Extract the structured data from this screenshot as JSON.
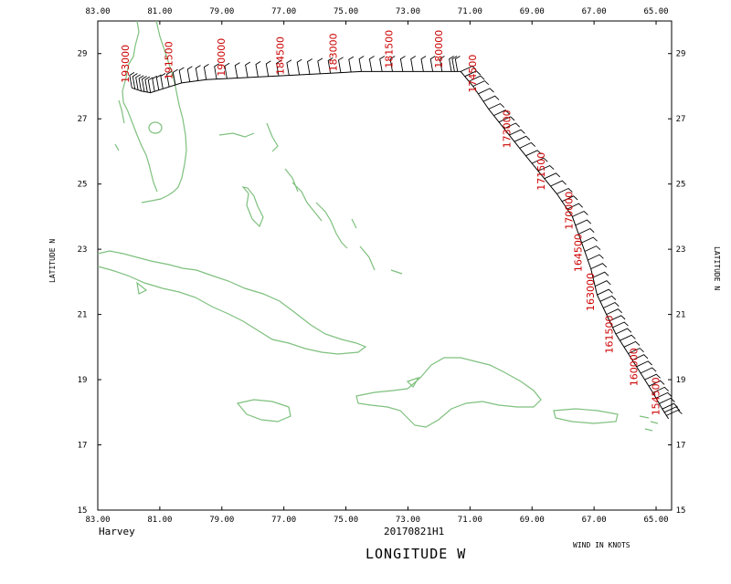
{
  "storm_name": "Harvey",
  "flight_id": "20170821H1",
  "x_axis_title": "LONGITUDE  W",
  "y_axis_title_left": "LATITUDE  N",
  "y_axis_title_right": "LATITUDE  N",
  "wind_units_label": "WIND IN KNOTS",
  "colors": {
    "coastline": "#7ec07e",
    "track": "#000000",
    "time_labels": "#cc0000",
    "frame": "#000000"
  },
  "map_bounds": {
    "lon_min": -83,
    "lon_max": -64.5,
    "lat_min": 15,
    "lat_max": 30
  },
  "lon_ticks": [
    "83.00",
    "81.00",
    "79.00",
    "77.00",
    "75.00",
    "73.00",
    "71.00",
    "69.00",
    "67.00",
    "65.00"
  ],
  "lon_tick_values": [
    -83,
    -81,
    -79,
    -77,
    -75,
    -73,
    -71,
    -69,
    -67,
    -65
  ],
  "lat_ticks": [
    "15",
    "17",
    "19",
    "21",
    "23",
    "25",
    "27",
    "29"
  ],
  "lat_tick_values": [
    15,
    17,
    19,
    21,
    23,
    25,
    27,
    29
  ],
  "flight_track": [
    [
      -81.9,
      27.95
    ],
    [
      -81.6,
      27.85
    ],
    [
      -81.3,
      27.8
    ],
    [
      -80.9,
      27.92
    ],
    [
      -80.3,
      28.1
    ],
    [
      -79.5,
      28.2
    ],
    [
      -78.5,
      28.25
    ],
    [
      -77.5,
      28.3
    ],
    [
      -76.5,
      28.35
    ],
    [
      -75.5,
      28.4
    ],
    [
      -74.5,
      28.45
    ],
    [
      -73.5,
      28.45
    ],
    [
      -72.5,
      28.45
    ],
    [
      -71.6,
      28.45
    ],
    [
      -71.3,
      28.45
    ],
    [
      -70.9,
      28.0
    ],
    [
      -70.4,
      27.3
    ],
    [
      -69.9,
      26.7
    ],
    [
      -69.4,
      26.1
    ],
    [
      -68.8,
      25.4
    ],
    [
      -68.2,
      24.7
    ],
    [
      -67.7,
      24.0
    ],
    [
      -67.4,
      23.2
    ],
    [
      -67.1,
      22.4
    ],
    [
      -66.9,
      21.6
    ],
    [
      -66.6,
      21.0
    ],
    [
      -66.3,
      20.4
    ],
    [
      -65.9,
      19.8
    ],
    [
      -65.5,
      19.2
    ],
    [
      -65.1,
      18.6
    ],
    [
      -64.8,
      18.1
    ],
    [
      -64.6,
      17.8
    ]
  ],
  "time_labels": [
    {
      "text": "193000",
      "lon": -82.0,
      "lat": 28.1
    },
    {
      "text": "191500",
      "lon": -80.6,
      "lat": 28.2
    },
    {
      "text": "190000",
      "lon": -78.9,
      "lat": 28.3
    },
    {
      "text": "184500",
      "lon": -77.0,
      "lat": 28.35
    },
    {
      "text": "183000",
      "lon": -75.3,
      "lat": 28.45
    },
    {
      "text": "181500",
      "lon": -73.5,
      "lat": 28.55
    },
    {
      "text": "180000",
      "lon": -71.9,
      "lat": 28.55
    },
    {
      "text": "174500",
      "lon": -70.8,
      "lat": 27.8
    },
    {
      "text": "173000",
      "lon": -69.7,
      "lat": 26.1
    },
    {
      "text": "171500",
      "lon": -68.6,
      "lat": 24.8
    },
    {
      "text": "170000",
      "lon": -67.7,
      "lat": 23.6
    },
    {
      "text": "164500",
      "lon": -67.4,
      "lat": 22.3
    },
    {
      "text": "163000",
      "lon": -67.0,
      "lat": 21.1
    },
    {
      "text": "161500",
      "lon": -66.4,
      "lat": 19.8
    },
    {
      "text": "160000",
      "lon": -65.6,
      "lat": 18.8
    },
    {
      "text": "154500",
      "lon": -64.9,
      "lat": 17.9
    }
  ]
}
